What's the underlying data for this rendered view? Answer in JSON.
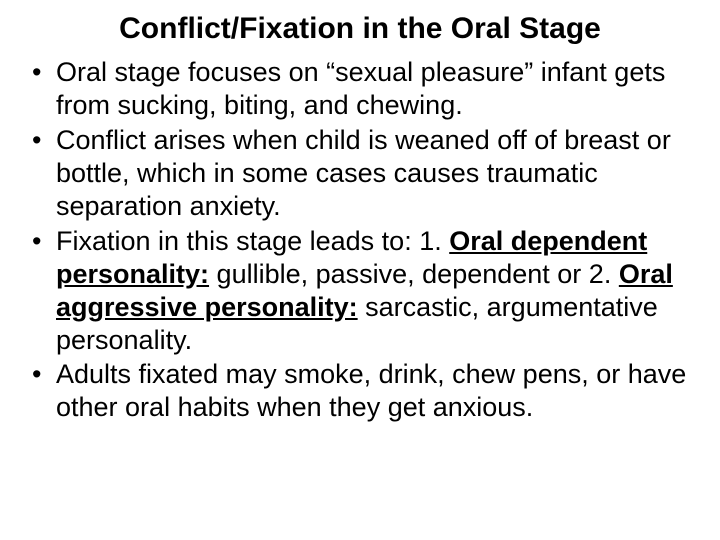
{
  "title": "Conflict/Fixation in the Oral Stage",
  "title_fontsize": 30,
  "body_fontsize": 27,
  "line_height": 1.22,
  "text_color": "#000000",
  "background_color": "#ffffff",
  "bullets": {
    "b1": "Oral stage focuses on “sexual pleasure” infant gets from sucking, biting, and chewing.",
    "b2": "Conflict arises when child is weaned off of breast or bottle, which in some cases causes traumatic separation anxiety.",
    "b3_pre": "Fixation in this stage leads to:  1.  ",
    "b3_label1": "Oral dependent personality:",
    "b3_mid": "  gullible, passive, dependent or 2.  ",
    "b3_label2": "Oral aggressive personality:",
    "b3_post": "  sarcastic, argumentative personality.",
    "b4": "Adults fixated may smoke, drink, chew pens, or have other oral habits when they get anxious."
  }
}
